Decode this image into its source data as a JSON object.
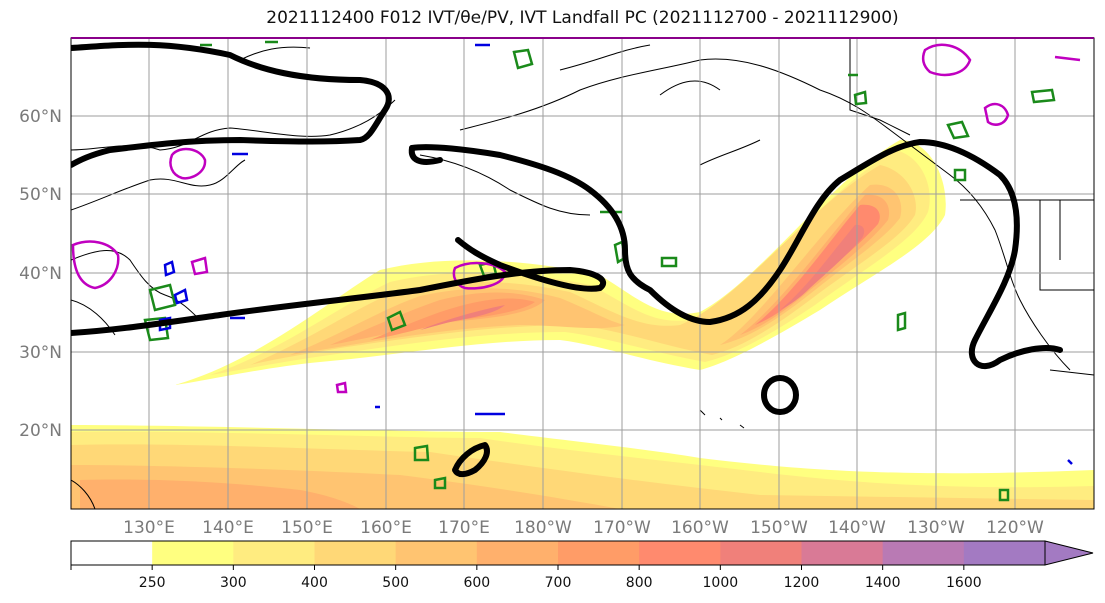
{
  "title": "2021112400 F012 IVT/θe/PV, IVT Landfall PC (2021112700 - 2021112900)",
  "lat_labels": [
    "60°N",
    "50°N",
    "40°N",
    "30°N",
    "20°N"
  ],
  "lon_labels": [
    "130°E",
    "140°E",
    "150°E",
    "160°E",
    "170°E",
    "180°W",
    "170°W",
    "160°W",
    "150°W",
    "140°W",
    "130°W",
    "120°W"
  ],
  "colorbar": {
    "ticks": [
      "250",
      "300",
      "400",
      "500",
      "600",
      "700",
      "800",
      "1000",
      "1200",
      "1400",
      "1600"
    ],
    "colors": [
      "#ffffff",
      "#ffff80",
      "#ffec80",
      "#ffd877",
      "#ffc471",
      "#ffb06c",
      "#ff9c67",
      "#ff8a6e",
      "#f0807a",
      "#d97a96",
      "#b97ab4",
      "#a37ac2"
    ]
  }
}
